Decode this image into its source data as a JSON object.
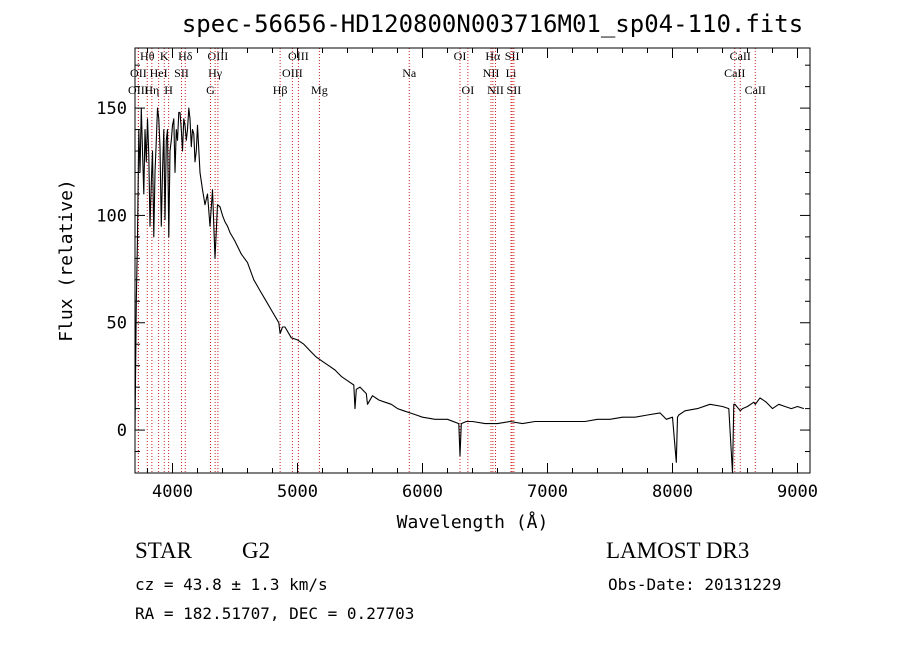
{
  "chart_data": {
    "type": "line",
    "title": "spec-56656-HD120800N003716M01_sp04-110.fits",
    "xlabel": "Wavelength (Å)",
    "ylabel": "Flux (relative)",
    "xlim": [
      3700,
      9100
    ],
    "ylim": [
      -20,
      178
    ],
    "xticks": [
      4000,
      5000,
      6000,
      7000,
      8000,
      9000
    ],
    "yticks": [
      0,
      50,
      100,
      150
    ],
    "series": [
      {
        "name": "spectrum",
        "x": [
          3700,
          3710,
          3720,
          3730,
          3740,
          3750,
          3760,
          3770,
          3780,
          3790,
          3800,
          3810,
          3820,
          3830,
          3840,
          3850,
          3860,
          3870,
          3880,
          3890,
          3900,
          3910,
          3920,
          3930,
          3940,
          3950,
          3960,
          3970,
          3980,
          3990,
          4000,
          4010,
          4020,
          4030,
          4040,
          4050,
          4060,
          4070,
          4080,
          4090,
          4100,
          4110,
          4120,
          4130,
          4140,
          4150,
          4160,
          4170,
          4180,
          4190,
          4200,
          4220,
          4240,
          4260,
          4280,
          4300,
          4320,
          4340,
          4360,
          4380,
          4400,
          4420,
          4440,
          4460,
          4480,
          4500,
          4550,
          4600,
          4650,
          4700,
          4750,
          4800,
          4850,
          4861,
          4880,
          4900,
          4950,
          5000,
          5050,
          5100,
          5150,
          5200,
          5250,
          5300,
          5350,
          5400,
          5450,
          5460,
          5470,
          5500,
          5550,
          5560,
          5600,
          5650,
          5700,
          5750,
          5800,
          5850,
          5900,
          5950,
          6000,
          6100,
          6200,
          6290,
          6300,
          6310,
          6350,
          6400,
          6500,
          6563,
          6600,
          6700,
          6800,
          6900,
          7000,
          7100,
          7200,
          7300,
          7400,
          7500,
          7600,
          7700,
          7800,
          7900,
          7950,
          8000,
          8030,
          8040,
          8050,
          8100,
          8200,
          8300,
          8400,
          8450,
          8480,
          8490,
          8500,
          8542,
          8560,
          8600,
          8650,
          8662,
          8700,
          8750,
          8800,
          8850,
          8900,
          8950,
          9000,
          9050
        ],
        "y": [
          0,
          60,
          90,
          140,
          120,
          150,
          130,
          110,
          140,
          125,
          145,
          128,
          95,
          115,
          130,
          90,
          120,
          135,
          150,
          145,
          132,
          95,
          120,
          140,
          98,
          135,
          140,
          90,
          130,
          135,
          142,
          145,
          120,
          140,
          135,
          148,
          148,
          140,
          130,
          145,
          142,
          135,
          140,
          150,
          145,
          132,
          140,
          138,
          125,
          130,
          142,
          120,
          112,
          105,
          110,
          95,
          112,
          80,
          105,
          104,
          100,
          97,
          95,
          92,
          90,
          88,
          82,
          78,
          70,
          65,
          60,
          55,
          50,
          45,
          48,
          48,
          43,
          42,
          40,
          37,
          34,
          32,
          30,
          28,
          25,
          23,
          21,
          10,
          19,
          20,
          17,
          12,
          16,
          14,
          13,
          12,
          10,
          9,
          8,
          7,
          6,
          5,
          5,
          3,
          -12,
          3,
          4,
          4,
          3,
          3,
          3,
          4,
          3,
          4,
          4,
          4,
          4,
          4,
          5,
          5,
          6,
          6,
          7,
          8,
          5,
          6,
          -15,
          6,
          7,
          9,
          10,
          12,
          11,
          10,
          -20,
          12,
          12,
          9,
          10,
          11,
          13,
          12,
          15,
          13,
          10,
          12,
          11,
          10,
          11,
          10
        ]
      }
    ],
    "lines": [
      {
        "label": "Hθ",
        "wave": 3798,
        "row": 0
      },
      {
        "label": "OII",
        "wave": 3727,
        "row": 1
      },
      {
        "label": "OIII",
        "wave": 3727,
        "row": 2
      },
      {
        "label": "Hη",
        "wave": 3835,
        "row": 2
      },
      {
        "label": "HeI",
        "wave": 3889,
        "row": 1
      },
      {
        "label": "K",
        "wave": 3934,
        "row": 0
      },
      {
        "label": "H",
        "wave": 3969,
        "row": 2
      },
      {
        "label": "SII",
        "wave": 4072,
        "row": 1
      },
      {
        "label": "Hδ",
        "wave": 4102,
        "row": 0
      },
      {
        "label": "OIII",
        "wave": 4363,
        "row": 0
      },
      {
        "label": "Hγ",
        "wave": 4341,
        "row": 1
      },
      {
        "label": "G",
        "wave": 4304,
        "row": 2
      },
      {
        "label": "Hβ",
        "wave": 4861,
        "row": 2
      },
      {
        "label": "OIII",
        "wave": 5007,
        "row": 0
      },
      {
        "label": "OIII",
        "wave": 4959,
        "row": 1
      },
      {
        "label": "Mg",
        "wave": 5175,
        "row": 2
      },
      {
        "label": "Na",
        "wave": 5894,
        "row": 1
      },
      {
        "label": "OI",
        "wave": 6300,
        "row": 0
      },
      {
        "label": "OI",
        "wave": 6363,
        "row": 2
      },
      {
        "label": "Hα",
        "wave": 6563,
        "row": 0
      },
      {
        "label": "NII",
        "wave": 6548,
        "row": 1
      },
      {
        "label": "NII",
        "wave": 6584,
        "row": 2
      },
      {
        "label": "SII",
        "wave": 6717,
        "row": 0
      },
      {
        "label": "Li",
        "wave": 6708,
        "row": 1
      },
      {
        "label": "SII",
        "wave": 6731,
        "row": 2
      },
      {
        "label": "CaII",
        "wave": 8542,
        "row": 0
      },
      {
        "label": "CaII",
        "wave": 8498,
        "row": 1
      },
      {
        "label": "CaII",
        "wave": 8662,
        "row": 2
      }
    ]
  },
  "info": {
    "object_type": "STAR",
    "object_class": "G2",
    "survey": "LAMOST DR3",
    "redshift": "cz = 43.8 ± 1.3 km/s",
    "obs_date": "Obs-Date: 20131229",
    "coords": "RA = 182.51707, DEC =    0.27703"
  }
}
